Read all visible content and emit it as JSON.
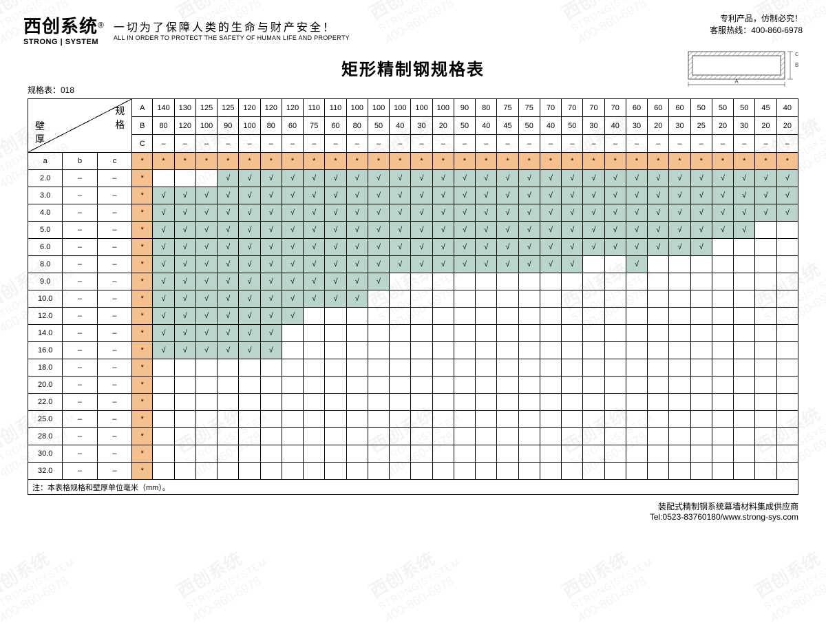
{
  "logo": {
    "cn": "西创系统",
    "en": "STRONG | SYSTEM",
    "reg": "®"
  },
  "tagline": {
    "cn": "一切为了保障人类的生命与财产安全！",
    "en": "ALL IN ORDER TO PROTECT THE SAFETY OF HUMAN LIFE AND PROPERTY"
  },
  "header_right": {
    "l1": "专利产品，仿制必究！",
    "l2": "客服热线：400-860-6978"
  },
  "title": "矩形精制钢规格表",
  "sheet_no": "规格表：018",
  "corner": {
    "spec": "规\n格",
    "wall": "壁\n厚"
  },
  "col_labels": [
    "A",
    "B",
    "C"
  ],
  "sub_labels": [
    "a",
    "b",
    "c"
  ],
  "specA": [
    140,
    130,
    125,
    125,
    120,
    120,
    120,
    110,
    110,
    100,
    100,
    100,
    100,
    100,
    90,
    80,
    75,
    75,
    70,
    70,
    70,
    70,
    60,
    60,
    60,
    50,
    50,
    50,
    45,
    40
  ],
  "specB": [
    80,
    120,
    100,
    90,
    100,
    80,
    60,
    75,
    60,
    80,
    50,
    40,
    30,
    20,
    50,
    40,
    45,
    50,
    40,
    50,
    30,
    40,
    30,
    20,
    30,
    25,
    20,
    30,
    20,
    20
  ],
  "specC_dash": "–",
  "star": "*",
  "tick": "√",
  "dash": "–",
  "wall_rows": [
    {
      "a": "2.0",
      "start": 4,
      "end": 30
    },
    {
      "a": "3.0",
      "start": 1,
      "end": 30
    },
    {
      "a": "4.0",
      "start": 1,
      "end": 30
    },
    {
      "a": "5.0",
      "start": 1,
      "end": 28
    },
    {
      "a": "6.0",
      "start": 1,
      "end": 26
    },
    {
      "a": "8.0",
      "start": 1,
      "end": 20,
      "extra": [
        23
      ]
    },
    {
      "a": "9.0",
      "start": 1,
      "end": 11
    },
    {
      "a": "10.0",
      "start": 1,
      "end": 10
    },
    {
      "a": "12.0",
      "start": 1,
      "end": 7
    },
    {
      "a": "14.0",
      "start": 1,
      "end": 6
    },
    {
      "a": "16.0",
      "start": 1,
      "end": 6
    },
    {
      "a": "18.0",
      "start": 0,
      "end": -1
    },
    {
      "a": "20.0",
      "start": 0,
      "end": -1
    },
    {
      "a": "22.0",
      "start": 0,
      "end": -1
    },
    {
      "a": "25.0",
      "start": 0,
      "end": -1
    },
    {
      "a": "28.0",
      "start": 0,
      "end": -1
    },
    {
      "a": "30.0",
      "start": 0,
      "end": -1
    },
    {
      "a": "32.0",
      "start": 0,
      "end": -1
    }
  ],
  "note": "注：本表格规格和壁厚单位毫米（mm）。",
  "footer": {
    "l1": "装配式精制钢系统幕墙材料集成供应商",
    "l2": "Tel:0523-83760180/www.strong-sys.com"
  },
  "colors": {
    "orange": "#f4c08e",
    "teal": "#b9d5ce",
    "border": "#000000",
    "bg": "#ffffff"
  },
  "watermark": {
    "cn": "西创系统",
    "en": "STRONG|SYSTEM",
    "ph": "400-860-6978"
  },
  "num_data_cols": 30
}
